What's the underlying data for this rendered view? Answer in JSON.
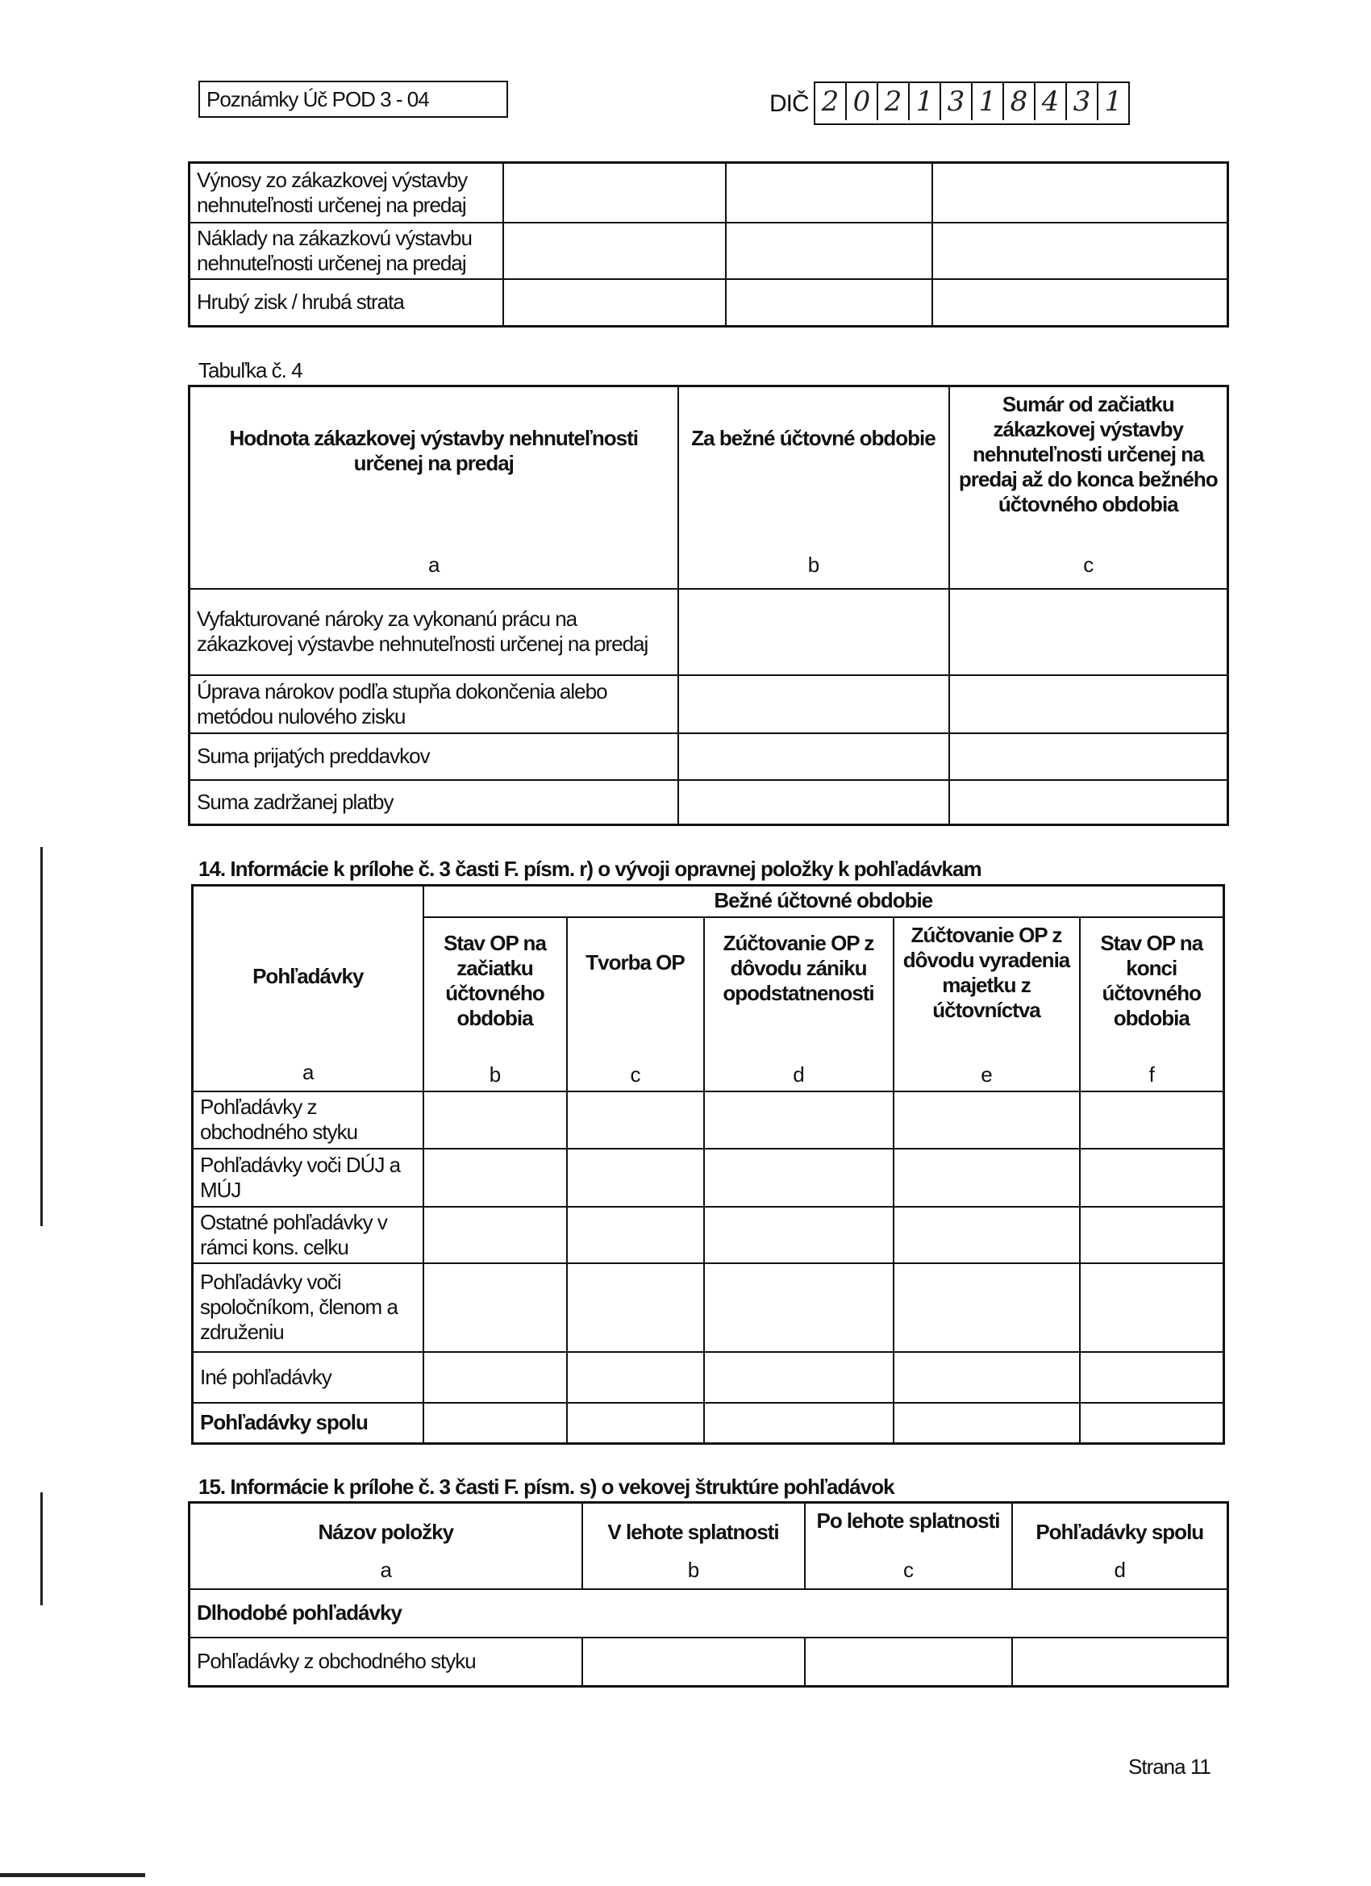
{
  "header": {
    "form_label": "Poznámky Úč POD 3 - 04",
    "dic_label": "DIČ",
    "dic_digits": [
      "2",
      "0",
      "2",
      "1",
      "3",
      "1",
      "8",
      "4",
      "3",
      "1"
    ]
  },
  "table_top": {
    "rows": [
      [
        "Výnosy zo zákazkovej výstavby nehnuteľnosti určenej na predaj",
        "",
        "",
        ""
      ],
      [
        "Náklady na zákazkovú výstavbu nehnuteľnosti určenej na predaj",
        "",
        "",
        ""
      ],
      [
        "Hrubý zisk / hrubá strata",
        "",
        "",
        ""
      ]
    ]
  },
  "table4": {
    "caption": "Tabuľka č. 4",
    "headers": [
      {
        "text": "Hodnota zákazkovej výstavby nehnuteľnosti určenej na predaj",
        "letter": "a"
      },
      {
        "text": "Za bežné účtovné obdobie",
        "letter": "b"
      },
      {
        "text": "Sumár od začiatku zákazkovej výstavby nehnuteľnosti určenej na predaj až do konca bežného účtovného obdobia",
        "letter": "c"
      }
    ],
    "rows": [
      [
        "Vyfakturované nároky za vykonanú prácu na zákazkovej výstavbe nehnuteľnosti určenej na predaj",
        "",
        ""
      ],
      [
        "Úprava nárokov podľa stupňa dokončenia alebo metódou nulového zisku",
        "",
        ""
      ],
      [
        "Suma prijatých preddavkov",
        "",
        ""
      ],
      [
        "Suma zadržanej platby",
        "",
        ""
      ]
    ]
  },
  "section14": {
    "title": "14.  Informácie k prílohe č. 3 časti F. písm. r) o vývoji opravnej položky k pohľadávkam",
    "first_header": {
      "text": "Pohľadávky",
      "letter": "a"
    },
    "group_header": "Bežné účtovné obdobie",
    "headers": [
      {
        "text": "Stav OP na začiatku účtovného obdobia",
        "letter": "b"
      },
      {
        "text": "Tvorba OP",
        "letter": "c"
      },
      {
        "text": "Zúčtovanie OP z dôvodu zániku opodstatnenosti",
        "letter": "d"
      },
      {
        "text": "Zúčtovanie OP z dôvodu vyradenia majetku z účtovníctva",
        "letter": "e"
      },
      {
        "text": "Stav OP na konci účtovného obdobia",
        "letter": "f"
      }
    ],
    "rows": [
      {
        "label": "Pohľadávky z obchodného styku",
        "bold": false
      },
      {
        "label": "Pohľadávky voči DÚJ a MÚJ",
        "bold": false
      },
      {
        "label": "Ostatné pohľadávky v rámci kons. celku",
        "bold": false
      },
      {
        "label": "Pohľadávky voči spoločníkom, členom a združeniu",
        "bold": false
      },
      {
        "label": "Iné pohľadávky",
        "bold": false
      },
      {
        "label": "Pohľadávky spolu",
        "bold": true
      }
    ]
  },
  "section15": {
    "title": "15.  Informácie k prílohe č. 3 časti F. písm. s) o vekovej štruktúre pohľadávok",
    "headers": [
      {
        "text": "Názov položky",
        "letter": "a"
      },
      {
        "text": "V lehote splatnosti",
        "letter": "b"
      },
      {
        "text": "Po lehote splatnosti",
        "letter": "c"
      },
      {
        "text": "Pohľadávky spolu",
        "letter": "d"
      }
    ],
    "group_row": "Dlhodobé pohľadávky",
    "rows": [
      {
        "label": "Pohľadávky z obchodného styku"
      }
    ]
  },
  "footer": {
    "page": "Strana 11"
  }
}
